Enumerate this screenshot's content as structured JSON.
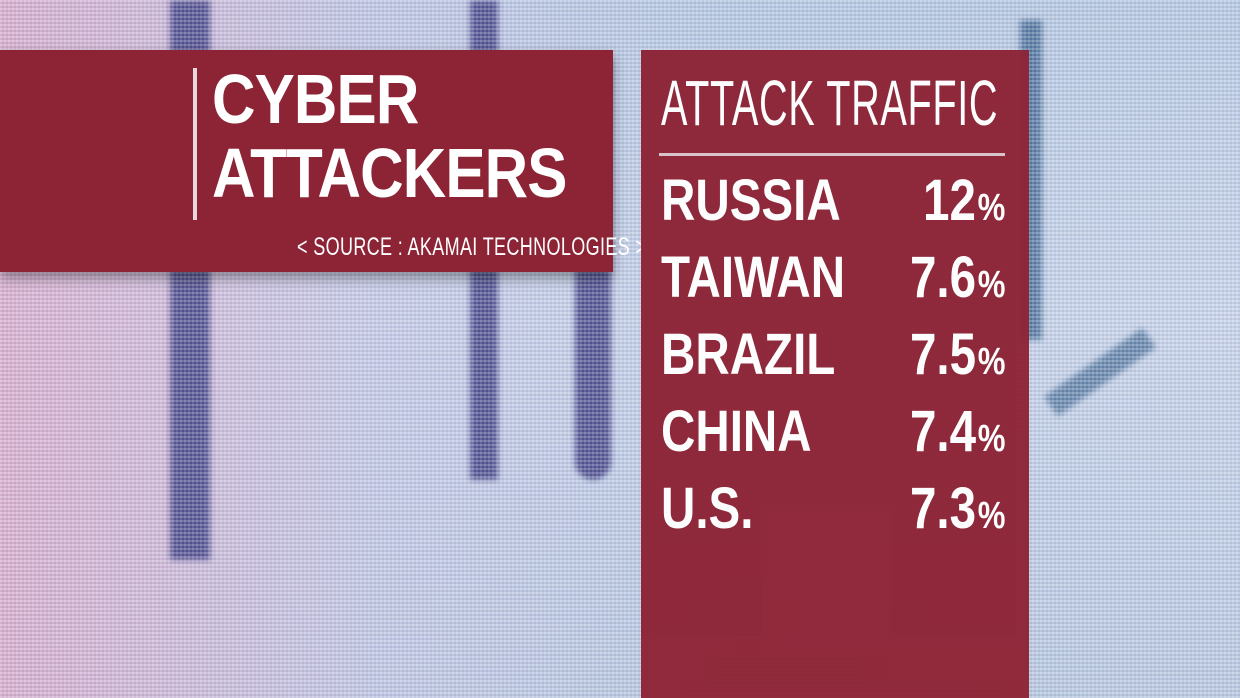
{
  "title": {
    "line1": "CYBER",
    "line2": "ATTACKERS",
    "source": "< SOURCE : AKAMAI TECHNOLOGIES >"
  },
  "panel": {
    "heading": "ATTACK TRAFFIC",
    "rows": [
      {
        "country": "RUSSIA",
        "value": "12",
        "unit": "%"
      },
      {
        "country": "TAIWAN",
        "value": "7.6",
        "unit": "%"
      },
      {
        "country": "BRAZIL",
        "value": "7.5",
        "unit": "%"
      },
      {
        "country": "CHINA",
        "value": "7.4",
        "unit": "%"
      },
      {
        "country": "U.S.",
        "value": "7.3",
        "unit": "%"
      }
    ]
  },
  "colors": {
    "panel": "#8d2436",
    "text": "#ffffff",
    "rule": "#d9c4c9"
  }
}
